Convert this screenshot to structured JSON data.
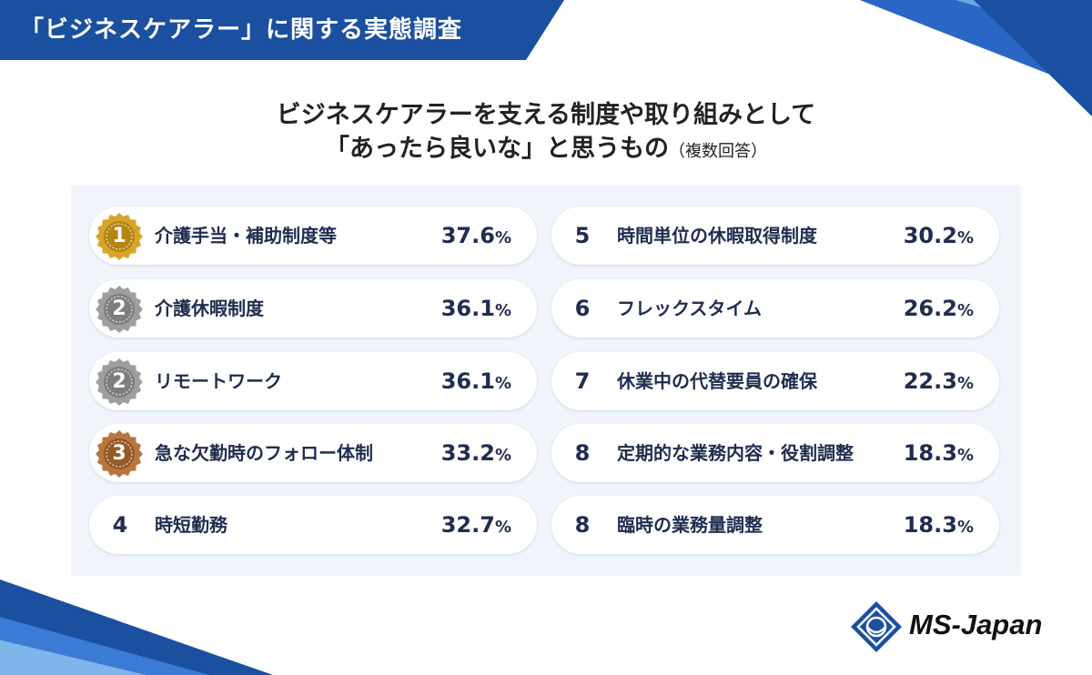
{
  "banner": {
    "text": "「ビジネスケアラー」に関する実態調査"
  },
  "chart_data": {
    "type": "table",
    "title_line1": "ビジネスケアラーを支える制度や取り組みとして",
    "title_line2": "「あったら良いな」と思うもの",
    "title_note": "（複数回答）",
    "unit": "%",
    "items": [
      {
        "rank": "1",
        "label": "介護手当・補助制度等",
        "value": 37.6,
        "display": "37.6",
        "medal": "gold"
      },
      {
        "rank": "2",
        "label": "介護休暇制度",
        "value": 36.1,
        "display": "36.1",
        "medal": "silver"
      },
      {
        "rank": "2",
        "label": "リモートワーク",
        "value": 36.1,
        "display": "36.1",
        "medal": "silver"
      },
      {
        "rank": "3",
        "label": "急な欠勤時のフォロー体制",
        "value": 33.2,
        "display": "33.2",
        "medal": "bronze"
      },
      {
        "rank": "4",
        "label": "時短勤務",
        "value": 32.7,
        "display": "32.7",
        "medal": ""
      },
      {
        "rank": "5",
        "label": "時間単位の休暇取得制度",
        "value": 30.2,
        "display": "30.2",
        "medal": ""
      },
      {
        "rank": "6",
        "label": "フレックスタイム",
        "value": 26.2,
        "display": "26.2",
        "medal": ""
      },
      {
        "rank": "7",
        "label": "休業中の代替要員の確保",
        "value": 22.3,
        "display": "22.3",
        "medal": ""
      },
      {
        "rank": "8",
        "label": "定期的な業務内容・役割調整",
        "value": 18.3,
        "display": "18.3",
        "medal": ""
      },
      {
        "rank": "8",
        "label": "臨時の業務量調整",
        "value": 18.3,
        "display": "18.3",
        "medal": ""
      }
    ]
  },
  "colors": {
    "gold": "#d7a52a",
    "gold_dark": "#b48414",
    "silver": "#9e9e9e",
    "silver_dark": "#7e7e7e",
    "bronze": "#b8763f",
    "bronze_dark": "#965a28",
    "accent": "#1b4fa0"
  },
  "logo": {
    "text": "MS-Japan",
    "icon": "ms-japan-logo-icon"
  }
}
